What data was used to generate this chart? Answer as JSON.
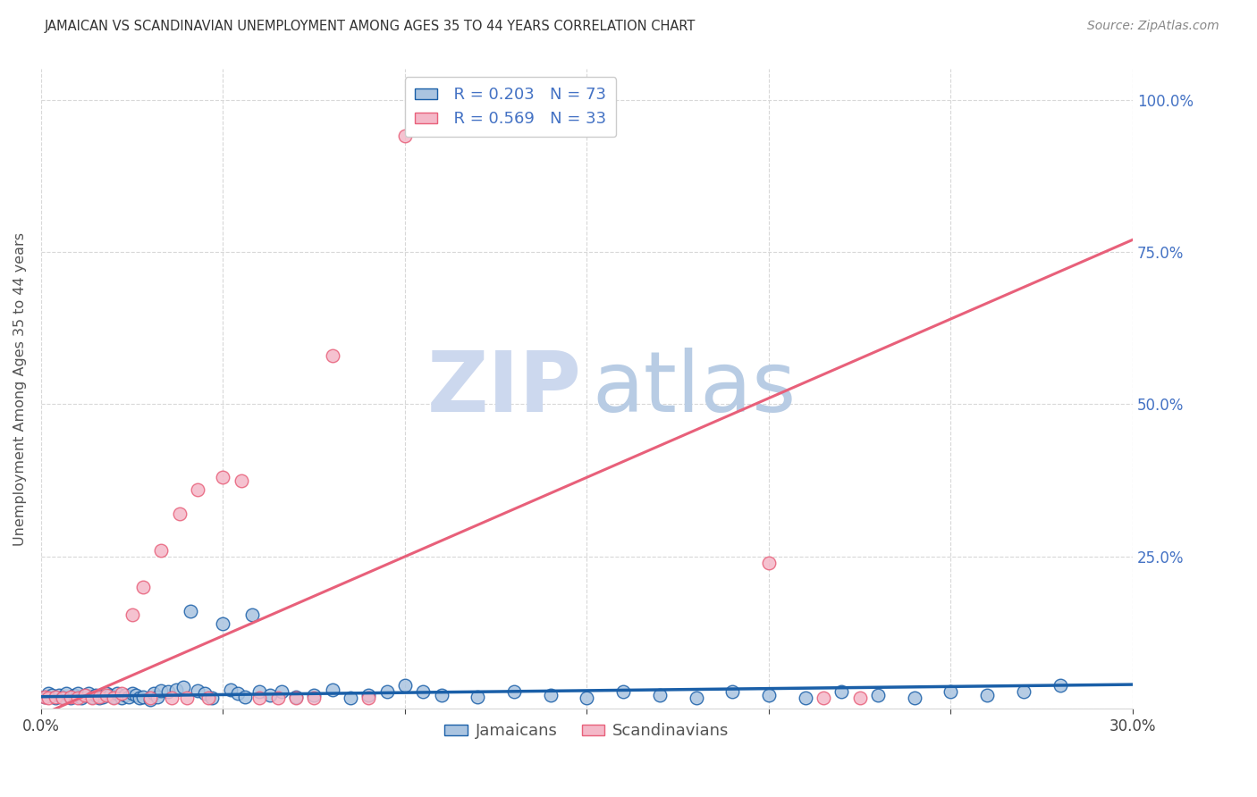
{
  "title": "JAMAICAN VS SCANDINAVIAN UNEMPLOYMENT AMONG AGES 35 TO 44 YEARS CORRELATION CHART",
  "source": "Source: ZipAtlas.com",
  "ylabel": "Unemployment Among Ages 35 to 44 years",
  "xlim": [
    0.0,
    0.3
  ],
  "ylim": [
    0.0,
    1.05
  ],
  "jamaican_color": "#aac4e0",
  "scandinavian_color": "#f4b8c8",
  "jamaican_line_color": "#1a5fa8",
  "scandinavian_line_color": "#e8607a",
  "legend_r_jamaican": "R = 0.203",
  "legend_n_jamaican": "N = 73",
  "legend_r_scandinavian": "R = 0.569",
  "legend_n_scandinavian": "N = 33",
  "watermark_zip_color": "#ccd8ee",
  "watermark_atlas_color": "#b8cce4",
  "grid_color": "#d8d8d8",
  "right_axis_color": "#4472c4",
  "jamaican_x": [
    0.001,
    0.002,
    0.003,
    0.004,
    0.005,
    0.006,
    0.007,
    0.008,
    0.009,
    0.01,
    0.011,
    0.012,
    0.013,
    0.014,
    0.015,
    0.016,
    0.017,
    0.018,
    0.019,
    0.02,
    0.021,
    0.022,
    0.023,
    0.024,
    0.025,
    0.026,
    0.027,
    0.028,
    0.03,
    0.031,
    0.032,
    0.033,
    0.035,
    0.037,
    0.039,
    0.041,
    0.043,
    0.045,
    0.047,
    0.05,
    0.052,
    0.054,
    0.056,
    0.058,
    0.06,
    0.063,
    0.066,
    0.07,
    0.075,
    0.08,
    0.085,
    0.09,
    0.095,
    0.1,
    0.105,
    0.11,
    0.12,
    0.13,
    0.14,
    0.15,
    0.16,
    0.17,
    0.18,
    0.19,
    0.2,
    0.21,
    0.22,
    0.23,
    0.24,
    0.25,
    0.26,
    0.27,
    0.28
  ],
  "jamaican_y": [
    0.02,
    0.025,
    0.022,
    0.018,
    0.022,
    0.02,
    0.025,
    0.018,
    0.022,
    0.025,
    0.018,
    0.022,
    0.025,
    0.02,
    0.022,
    0.018,
    0.02,
    0.025,
    0.022,
    0.02,
    0.025,
    0.018,
    0.022,
    0.02,
    0.025,
    0.022,
    0.018,
    0.02,
    0.015,
    0.025,
    0.02,
    0.03,
    0.028,
    0.032,
    0.035,
    0.16,
    0.03,
    0.025,
    0.018,
    0.14,
    0.032,
    0.025,
    0.02,
    0.155,
    0.028,
    0.022,
    0.028,
    0.02,
    0.022,
    0.032,
    0.018,
    0.022,
    0.028,
    0.038,
    0.028,
    0.022,
    0.02,
    0.028,
    0.022,
    0.018,
    0.028,
    0.022,
    0.018,
    0.028,
    0.022,
    0.018,
    0.028,
    0.022,
    0.018,
    0.028,
    0.022,
    0.028,
    0.038
  ],
  "scandinavian_x": [
    0.001,
    0.002,
    0.004,
    0.006,
    0.008,
    0.01,
    0.012,
    0.014,
    0.016,
    0.018,
    0.02,
    0.022,
    0.025,
    0.028,
    0.03,
    0.033,
    0.036,
    0.038,
    0.04,
    0.043,
    0.046,
    0.05,
    0.055,
    0.06,
    0.065,
    0.07,
    0.075,
    0.08,
    0.09,
    0.1,
    0.2,
    0.215,
    0.225
  ],
  "scandinavian_y": [
    0.02,
    0.018,
    0.02,
    0.018,
    0.02,
    0.018,
    0.022,
    0.018,
    0.02,
    0.022,
    0.018,
    0.025,
    0.155,
    0.2,
    0.018,
    0.26,
    0.018,
    0.32,
    0.018,
    0.36,
    0.018,
    0.38,
    0.375,
    0.018,
    0.018,
    0.018,
    0.018,
    0.58,
    0.018,
    0.94,
    0.24,
    0.018,
    0.018
  ],
  "scan_trend_x0": 0.0,
  "scan_trend_y0": -0.01,
  "scan_trend_x1": 0.3,
  "scan_trend_y1": 0.77,
  "jam_trend_x0": 0.0,
  "jam_trend_y0": 0.02,
  "jam_trend_x1": 0.3,
  "jam_trend_y1": 0.04
}
